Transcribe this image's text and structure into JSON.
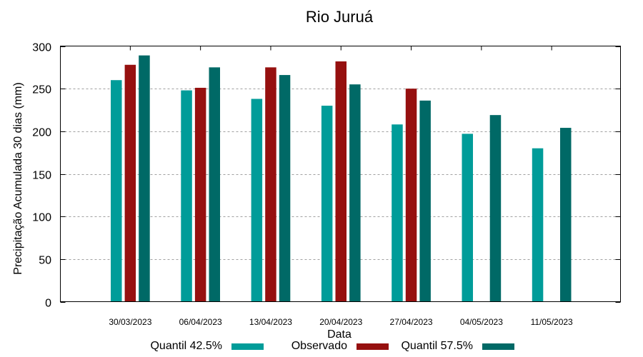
{
  "chart_data": {
    "type": "bar",
    "title": "Rio Juruá",
    "xlabel": "Data",
    "ylabel": "Precipitação Acumulada 30 dias (mm)",
    "ylim": [
      0,
      300
    ],
    "yticks": [
      0,
      50,
      100,
      150,
      200,
      250,
      300
    ],
    "grid": true,
    "legend_position": "bottom",
    "categories": [
      "30/03/2023",
      "06/04/2023",
      "13/04/2023",
      "20/04/2023",
      "27/04/2023",
      "04/05/2023",
      "11/05/2023"
    ],
    "series": [
      {
        "name": "Quantil 42.5%",
        "color": "#009c99",
        "values": [
          260,
          248,
          238,
          230,
          208,
          197,
          180
        ]
      },
      {
        "name": "Observado",
        "color": "#96100f",
        "values": [
          278,
          251,
          275,
          282,
          250,
          null,
          null
        ]
      },
      {
        "name": "Quantil 57.5%",
        "color": "#006966",
        "values": [
          289,
          275,
          266,
          255,
          236,
          219,
          204
        ]
      }
    ]
  }
}
